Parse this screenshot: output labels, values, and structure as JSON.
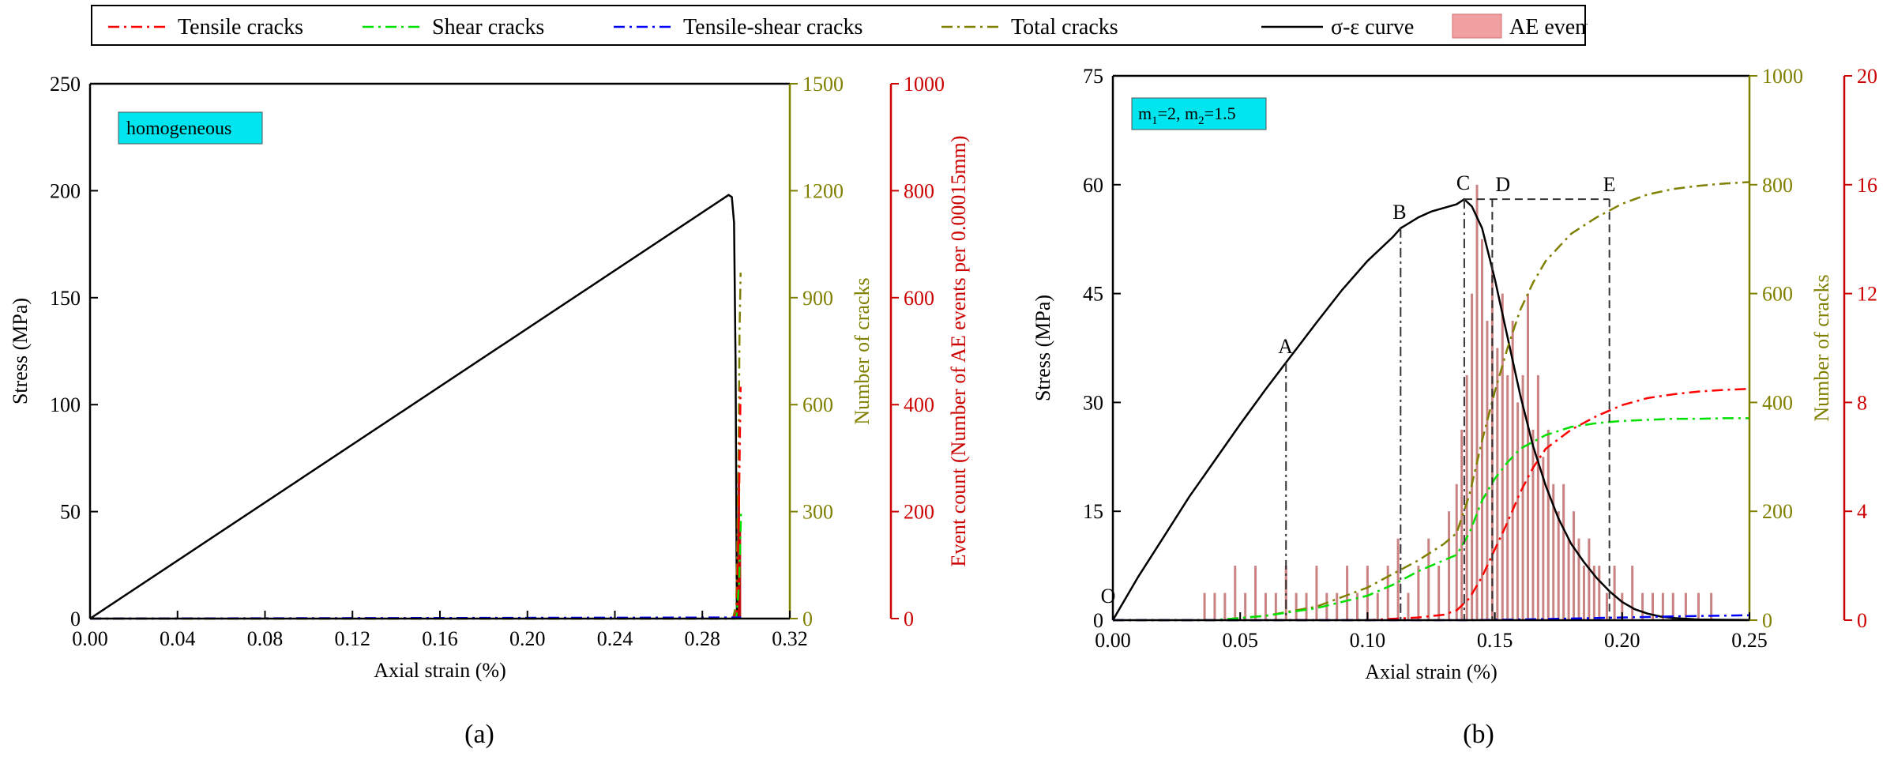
{
  "legend": {
    "items": [
      {
        "label": "Tensile cracks",
        "color": "#ff0000",
        "kind": "dashdot"
      },
      {
        "label": "Shear cracks",
        "color": "#00e000",
        "kind": "dashdot"
      },
      {
        "label": "Tensile-shear cracks",
        "color": "#0000ff",
        "kind": "dashdot"
      },
      {
        "label": "Total cracks",
        "color": "#808000",
        "kind": "dashdot"
      },
      {
        "label": "σ-ε curve",
        "color": "#000000",
        "kind": "solid"
      },
      {
        "label": "AE events",
        "color": "#f0a0a0",
        "kind": "box"
      }
    ]
  },
  "chart_data": [
    {
      "type": "line",
      "caption": "(a)",
      "annotation": "homogeneous",
      "xlabel": "Axial strain (%)",
      "ylabel": "Stress (MPa)",
      "y2label": "Number of cracks",
      "y3label": "Event count (Number of AE events per 0.00015mm)",
      "xlim": [
        0,
        0.32
      ],
      "ylim": [
        0,
        250
      ],
      "y2lim": [
        0,
        1500
      ],
      "y3lim": [
        0,
        1000
      ],
      "xticks": [
        "0.00",
        "0.04",
        "0.08",
        "0.12",
        "0.16",
        "0.20",
        "0.24",
        "0.28",
        "0.32"
      ],
      "yticks": [
        "0",
        "50",
        "100",
        "150",
        "200",
        "250"
      ],
      "y2ticks": [
        "0",
        "300",
        "600",
        "900",
        "1200",
        "1500"
      ],
      "y3ticks": [
        "0",
        "200",
        "400",
        "600",
        "800",
        "1000"
      ],
      "colors": {
        "y2": "#808000",
        "y3": "#cc0000"
      },
      "series": [
        {
          "name": "σ-ε curve",
          "axis": "y1",
          "color": "#000000",
          "dash": "solid",
          "x": [
            0,
            0.292,
            0.2935,
            0.2945,
            0.2952,
            0.2958
          ],
          "y": [
            0,
            198,
            197,
            185,
            120,
            0
          ]
        },
        {
          "name": "Total cracks",
          "axis": "y2",
          "color": "#808000",
          "dash": "dashdot",
          "x": [
            0,
            0.294,
            0.2955,
            0.2965,
            0.297,
            0.2975
          ],
          "y": [
            0,
            0,
            40,
            400,
            800,
            970
          ]
        },
        {
          "name": "Tensile cracks",
          "axis": "y2",
          "color": "#ff0000",
          "dash": "dashdot",
          "x": [
            0,
            0.294,
            0.2958,
            0.2967,
            0.2975
          ],
          "y": [
            0,
            0,
            20,
            300,
            650
          ]
        },
        {
          "name": "Shear cracks",
          "axis": "y2",
          "color": "#00e000",
          "dash": "dashdot",
          "x": [
            0,
            0.2955,
            0.2968,
            0.2977
          ],
          "y": [
            0,
            0,
            100,
            300
          ]
        },
        {
          "name": "Tensile-shear cracks",
          "axis": "y2",
          "color": "#0000ff",
          "dash": "dashdot",
          "x": [
            0,
            0.2977
          ],
          "y": [
            0,
            3
          ]
        }
      ],
      "ae_bars": [
        {
          "x": 0.2962,
          "y": 80
        },
        {
          "x": 0.2967,
          "y": 260
        },
        {
          "x": 0.2972,
          "y": 170
        }
      ]
    },
    {
      "type": "line",
      "caption": "(b)",
      "annotation": "m1=2, m2=1.5",
      "annotation_parts": {
        "m1": "m",
        "sub1": "1",
        "mid": "=2, m",
        "sub2": "2",
        "end": "=1.5"
      },
      "xlabel": "Axial strain (%)",
      "ylabel": "Stress (MPa)",
      "y2label": "Number of cracks",
      "y3label": "Event count (Number of AE events per 0.00015mm)",
      "xlim": [
        0,
        0.25
      ],
      "ylim": [
        0,
        75
      ],
      "y2lim": [
        0,
        1000
      ],
      "y3lim": [
        0,
        20
      ],
      "xticks": [
        "0.00",
        "0.05",
        "0.10",
        "0.15",
        "0.20",
        "0.25"
      ],
      "yticks": [
        "0",
        "15",
        "30",
        "45",
        "60",
        "75"
      ],
      "y2ticks": [
        "0",
        "200",
        "400",
        "600",
        "800",
        "1000"
      ],
      "y3ticks": [
        "0",
        "4",
        "8",
        "12",
        "16",
        "20"
      ],
      "colors": {
        "y2": "#808000",
        "y3": "#cc0000"
      },
      "stage_points": [
        {
          "label": "O",
          "x": 0.0,
          "y": 0.0
        },
        {
          "label": "A",
          "x": 0.068,
          "y": 35.5
        },
        {
          "label": "B",
          "x": 0.113,
          "y": 54.0
        },
        {
          "label": "C",
          "x": 0.138,
          "y": 58.0
        },
        {
          "label": "D",
          "x": 0.149,
          "y": 58.0
        },
        {
          "label": "E",
          "x": 0.195,
          "y": 58.0
        }
      ],
      "series": [
        {
          "name": "σ-ε curve",
          "axis": "y1",
          "color": "#000000",
          "dash": "solid",
          "x": [
            0,
            0.01,
            0.02,
            0.03,
            0.04,
            0.05,
            0.06,
            0.068,
            0.08,
            0.09,
            0.1,
            0.11,
            0.113,
            0.12,
            0.125,
            0.13,
            0.135,
            0.138,
            0.141,
            0.145,
            0.15,
            0.155,
            0.16,
            0.165,
            0.17,
            0.175,
            0.18,
            0.185,
            0.19,
            0.195,
            0.2,
            0.205,
            0.21,
            0.215,
            0.22,
            0.225,
            0.23,
            0.24,
            0.25
          ],
          "y": [
            0,
            6.0,
            11.5,
            17.0,
            22.0,
            27.0,
            31.8,
            35.5,
            41.0,
            45.5,
            49.5,
            52.8,
            54.0,
            55.5,
            56.3,
            56.8,
            57.3,
            58.0,
            57.0,
            54.0,
            47.0,
            39.0,
            31.0,
            24.0,
            18.5,
            14.0,
            10.5,
            8.0,
            5.8,
            4.0,
            2.5,
            1.5,
            0.9,
            0.5,
            0.3,
            0.2,
            0.1,
            0.05,
            0.02
          ]
        },
        {
          "name": "Total cracks",
          "axis": "y2",
          "color": "#808000",
          "dash": "dashdot",
          "x": [
            0,
            0.04,
            0.06,
            0.08,
            0.1,
            0.11,
            0.12,
            0.13,
            0.135,
            0.14,
            0.145,
            0.15,
            0.155,
            0.16,
            0.165,
            0.17,
            0.18,
            0.19,
            0.2,
            0.21,
            0.22,
            0.23,
            0.24,
            0.25
          ],
          "y": [
            0,
            0,
            8,
            25,
            60,
            85,
            110,
            140,
            160,
            230,
            330,
            420,
            500,
            570,
            620,
            660,
            710,
            740,
            765,
            782,
            792,
            798,
            802,
            805
          ]
        },
        {
          "name": "Tensile cracks",
          "axis": "y2",
          "color": "#ff0000",
          "dash": "dashdot",
          "x": [
            0,
            0.1,
            0.12,
            0.13,
            0.135,
            0.14,
            0.145,
            0.15,
            0.155,
            0.16,
            0.165,
            0.17,
            0.18,
            0.19,
            0.2,
            0.21,
            0.22,
            0.23,
            0.24,
            0.25
          ],
          "y": [
            0,
            0,
            5,
            10,
            18,
            40,
            80,
            130,
            180,
            235,
            280,
            315,
            350,
            375,
            395,
            408,
            415,
            420,
            423,
            425
          ]
        },
        {
          "name": "Shear cracks",
          "axis": "y2",
          "color": "#00e000",
          "dash": "dashdot",
          "x": [
            0,
            0.04,
            0.06,
            0.08,
            0.1,
            0.11,
            0.12,
            0.13,
            0.135,
            0.14,
            0.145,
            0.15,
            0.155,
            0.16,
            0.17,
            0.18,
            0.19,
            0.2,
            0.21,
            0.22,
            0.23,
            0.24,
            0.25
          ],
          "y": [
            0,
            0,
            8,
            22,
            45,
            65,
            90,
            110,
            120,
            160,
            220,
            260,
            290,
            315,
            340,
            355,
            362,
            366,
            368,
            370,
            370,
            371,
            371
          ]
        },
        {
          "name": "Tensile-shear cracks",
          "axis": "y2",
          "color": "#0000ff",
          "dash": "dashdot",
          "x": [
            0,
            0.14,
            0.17,
            0.2,
            0.22,
            0.25
          ],
          "y": [
            0,
            0,
            2,
            5,
            7,
            9
          ]
        }
      ],
      "ae_bars": [
        {
          "x": 0.036,
          "y": 1
        },
        {
          "x": 0.04,
          "y": 1
        },
        {
          "x": 0.044,
          "y": 1
        },
        {
          "x": 0.048,
          "y": 2
        },
        {
          "x": 0.052,
          "y": 1
        },
        {
          "x": 0.056,
          "y": 2
        },
        {
          "x": 0.06,
          "y": 1
        },
        {
          "x": 0.064,
          "y": 1
        },
        {
          "x": 0.068,
          "y": 2
        },
        {
          "x": 0.072,
          "y": 1
        },
        {
          "x": 0.076,
          "y": 1
        },
        {
          "x": 0.08,
          "y": 2
        },
        {
          "x": 0.084,
          "y": 1
        },
        {
          "x": 0.088,
          "y": 1
        },
        {
          "x": 0.092,
          "y": 2
        },
        {
          "x": 0.096,
          "y": 1
        },
        {
          "x": 0.1,
          "y": 2
        },
        {
          "x": 0.104,
          "y": 1
        },
        {
          "x": 0.108,
          "y": 2
        },
        {
          "x": 0.112,
          "y": 3
        },
        {
          "x": 0.116,
          "y": 1
        },
        {
          "x": 0.12,
          "y": 2
        },
        {
          "x": 0.124,
          "y": 3
        },
        {
          "x": 0.128,
          "y": 2
        },
        {
          "x": 0.132,
          "y": 4
        },
        {
          "x": 0.135,
          "y": 5
        },
        {
          "x": 0.137,
          "y": 7
        },
        {
          "x": 0.139,
          "y": 9
        },
        {
          "x": 0.141,
          "y": 12
        },
        {
          "x": 0.143,
          "y": 16
        },
        {
          "x": 0.145,
          "y": 14
        },
        {
          "x": 0.147,
          "y": 11
        },
        {
          "x": 0.149,
          "y": 13
        },
        {
          "x": 0.151,
          "y": 10
        },
        {
          "x": 0.153,
          "y": 12
        },
        {
          "x": 0.155,
          "y": 9
        },
        {
          "x": 0.157,
          "y": 11
        },
        {
          "x": 0.159,
          "y": 8
        },
        {
          "x": 0.161,
          "y": 9
        },
        {
          "x": 0.163,
          "y": 12
        },
        {
          "x": 0.165,
          "y": 7
        },
        {
          "x": 0.167,
          "y": 9
        },
        {
          "x": 0.169,
          "y": 6
        },
        {
          "x": 0.171,
          "y": 7
        },
        {
          "x": 0.173,
          "y": 5
        },
        {
          "x": 0.175,
          "y": 4
        },
        {
          "x": 0.177,
          "y": 5
        },
        {
          "x": 0.179,
          "y": 3
        },
        {
          "x": 0.181,
          "y": 4
        },
        {
          "x": 0.183,
          "y": 3
        },
        {
          "x": 0.185,
          "y": 2
        },
        {
          "x": 0.187,
          "y": 3
        },
        {
          "x": 0.189,
          "y": 2
        },
        {
          "x": 0.191,
          "y": 2
        },
        {
          "x": 0.194,
          "y": 1
        },
        {
          "x": 0.197,
          "y": 2
        },
        {
          "x": 0.2,
          "y": 1
        },
        {
          "x": 0.204,
          "y": 2
        },
        {
          "x": 0.208,
          "y": 1
        },
        {
          "x": 0.212,
          "y": 1
        },
        {
          "x": 0.216,
          "y": 1
        },
        {
          "x": 0.22,
          "y": 1
        },
        {
          "x": 0.225,
          "y": 1
        },
        {
          "x": 0.23,
          "y": 1
        },
        {
          "x": 0.235,
          "y": 1
        }
      ]
    }
  ]
}
